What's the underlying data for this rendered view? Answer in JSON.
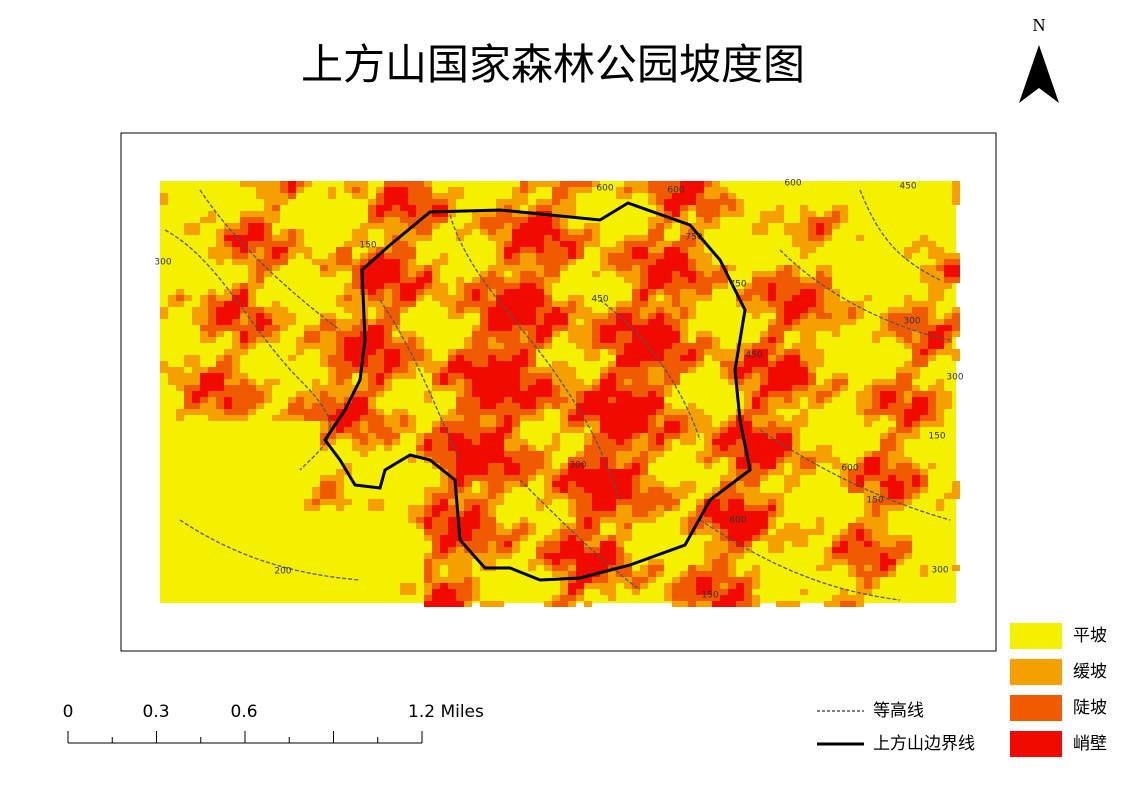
{
  "title": "上方山国家森林公园坡度图",
  "north": "N",
  "scale_bar": {
    "labels": [
      "0",
      "0.3",
      "0.6",
      "1.2 Miles"
    ]
  },
  "legend_lines": [
    {
      "label": "等高线"
    },
    {
      "label": "上方山边界线"
    }
  ],
  "legend_classes": [
    {
      "label": "平坡",
      "color": "#f5f000"
    },
    {
      "label": "缓坡",
      "color": "#f5a000"
    },
    {
      "label": "陡坡",
      "color": "#f05a00"
    },
    {
      "label": "峭壁",
      "color": "#f00a00"
    }
  ],
  "contour_labels": [
    "600",
    "600",
    "600",
    "450",
    "750",
    "750",
    "450",
    "300",
    "300",
    "150",
    "600",
    "150",
    "300",
    "150",
    "200",
    "300",
    "450",
    "600",
    "300",
    "150"
  ]
}
